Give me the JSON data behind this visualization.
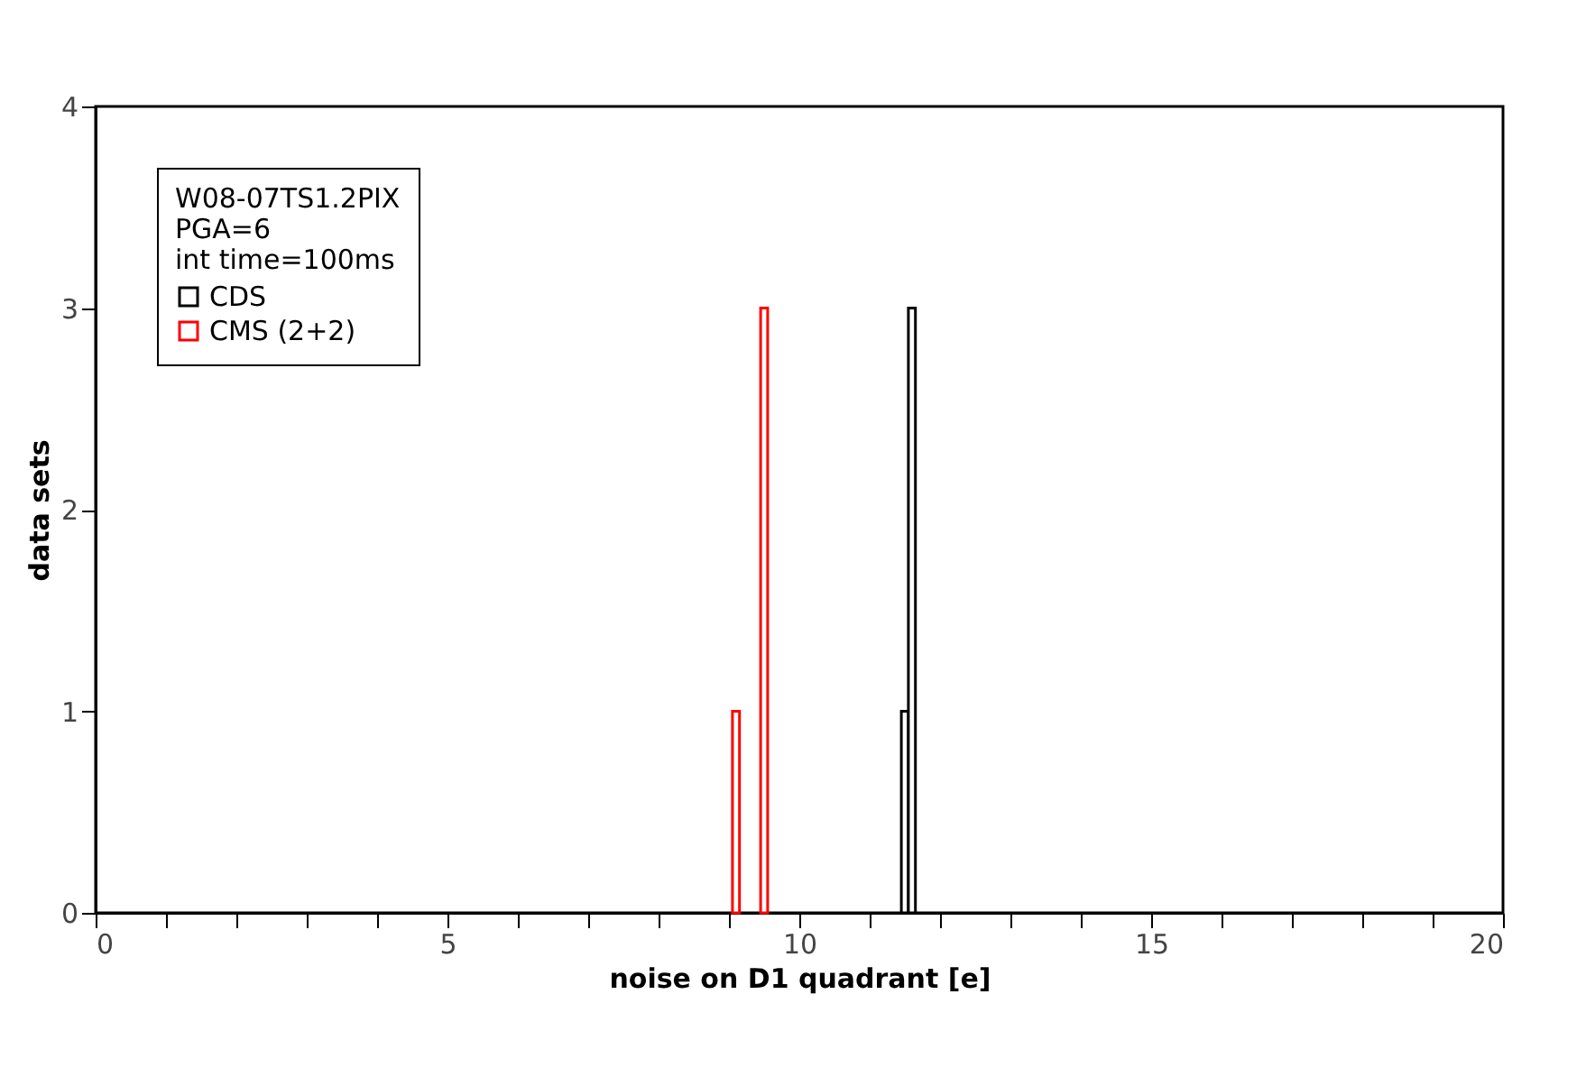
{
  "chart_data": {
    "type": "bar",
    "xlabel": "noise on D1 quadrant [e]",
    "ylabel": "data sets",
    "legend_title": "W08-07TS1.2PIX\nPGA=6\nint time=100ms",
    "legend": "top left",
    "series": [
      {
        "name": "CDS",
        "color": "#000000",
        "x": [
          11.5,
          11.6
        ],
        "values": [
          1,
          3
        ]
      },
      {
        "name": "CMS (2+2)",
        "color": "#ff0000",
        "x": [
          9.1,
          9.5
        ],
        "values": [
          1,
          3
        ]
      }
    ],
    "xlim": [
      0,
      20
    ],
    "ylim": [
      0,
      4
    ],
    "xticks": [
      0,
      {
        "value": 1,
        "label": null
      },
      {
        "value": 2,
        "label": null
      },
      {
        "value": 3,
        "label": null
      },
      {
        "value": 4,
        "label": null
      },
      5,
      {
        "value": 6,
        "label": null
      },
      {
        "value": 7,
        "label": null
      },
      {
        "value": 8,
        "label": null
      },
      {
        "value": 9,
        "label": null
      },
      10,
      {
        "value": 11,
        "label": null
      },
      {
        "value": 12,
        "label": null
      },
      {
        "value": 13,
        "label": null
      },
      {
        "value": 14,
        "label": null
      },
      15,
      {
        "value": 16,
        "label": null
      },
      {
        "value": 17,
        "label": null
      },
      {
        "value": 18,
        "label": null
      },
      {
        "value": 19,
        "label": null
      },
      20
    ],
    "yticks": [
      0,
      1,
      2,
      3,
      4
    ],
    "grid": false
  }
}
